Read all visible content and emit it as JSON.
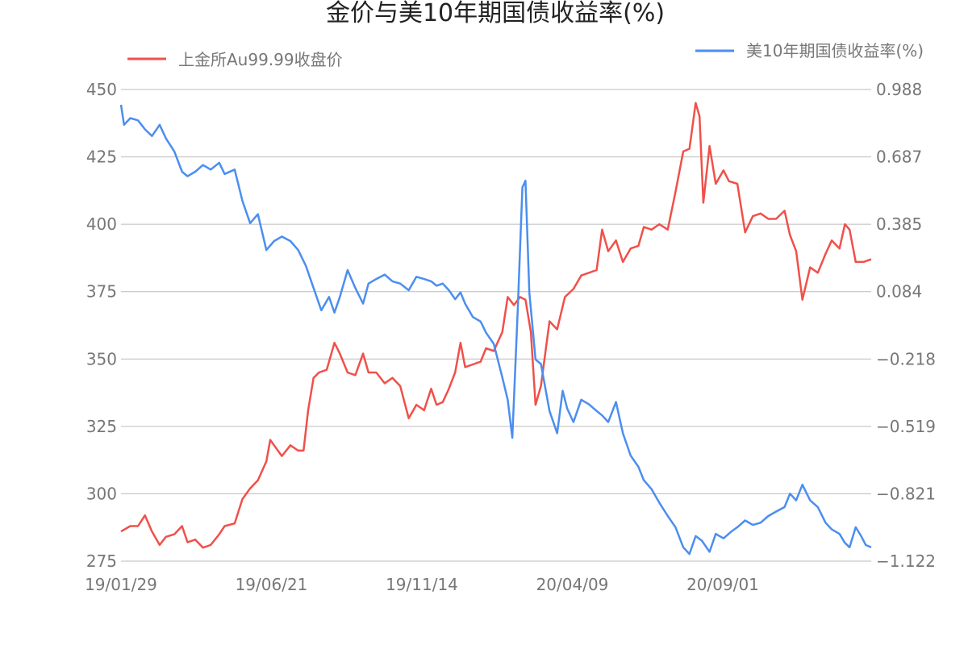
{
  "chart_data": {
    "type": "line",
    "title": "金价与美10年期国债收益率(%)",
    "x_ticks": [
      "19/01/29",
      "19/06/21",
      "19/11/14",
      "20/04/09",
      "20/09/01"
    ],
    "y_left": {
      "ticks": [
        "450",
        "425",
        "400",
        "375",
        "350",
        "325",
        "300",
        "275"
      ],
      "range": [
        275,
        450
      ]
    },
    "y_right": {
      "ticks": [
        "0.988",
        "0.687",
        "0.385",
        "0.084",
        "−0.218",
        "−0.519",
        "−0.821",
        "−1.122"
      ],
      "range": [
        -1.122,
        0.988
      ]
    },
    "grid": true,
    "series": [
      {
        "name": "上金所Au99.99收盘价",
        "axis": "left",
        "color": "#f0504a",
        "points": [
          [
            "2019-01-29",
            286
          ],
          [
            "2019-02-10",
            288
          ],
          [
            "2019-02-20",
            288
          ],
          [
            "2019-03-01",
            292
          ],
          [
            "2019-03-10",
            286
          ],
          [
            "2019-03-20",
            281
          ],
          [
            "2019-03-28",
            284
          ],
          [
            "2019-04-08",
            285
          ],
          [
            "2019-04-18",
            288
          ],
          [
            "2019-04-25",
            282
          ],
          [
            "2019-05-05",
            283
          ],
          [
            "2019-05-15",
            280
          ],
          [
            "2019-05-25",
            281
          ],
          [
            "2019-06-05",
            285
          ],
          [
            "2019-06-12",
            288
          ],
          [
            "2019-06-25",
            289
          ],
          [
            "2019-07-05",
            298
          ],
          [
            "2019-07-15",
            302
          ],
          [
            "2019-07-25",
            305
          ],
          [
            "2019-08-05",
            312
          ],
          [
            "2019-08-10",
            320
          ],
          [
            "2019-08-15",
            318
          ],
          [
            "2019-08-25",
            314
          ],
          [
            "2019-09-05",
            318
          ],
          [
            "2019-09-15",
            316
          ],
          [
            "2019-09-22",
            316
          ],
          [
            "2019-09-28",
            331
          ],
          [
            "2019-10-05",
            343
          ],
          [
            "2019-10-12",
            345
          ],
          [
            "2019-10-22",
            346
          ],
          [
            "2019-11-01",
            356
          ],
          [
            "2019-11-08",
            352
          ],
          [
            "2019-11-18",
            345
          ],
          [
            "2019-11-28",
            344
          ],
          [
            "2019-12-08",
            352
          ],
          [
            "2019-12-15",
            345
          ],
          [
            "2019-12-25",
            345
          ],
          [
            "2020-01-05",
            341
          ],
          [
            "2020-01-15",
            343
          ],
          [
            "2020-01-25",
            340
          ],
          [
            "2020-02-05",
            328
          ],
          [
            "2020-02-15",
            333
          ],
          [
            "2020-02-25",
            331
          ],
          [
            "2020-03-05",
            339
          ],
          [
            "2020-03-12",
            333
          ],
          [
            "2020-03-20",
            334
          ],
          [
            "2020-03-28",
            339
          ],
          [
            "2020-04-05",
            345
          ],
          [
            "2020-04-12",
            356
          ],
          [
            "2020-04-18",
            347
          ],
          [
            "2020-04-28",
            348
          ],
          [
            "2020-05-08",
            349
          ],
          [
            "2020-05-15",
            354
          ],
          [
            "2020-05-25",
            353
          ],
          [
            "2020-06-05",
            360
          ],
          [
            "2020-06-12",
            373
          ],
          [
            "2020-06-20",
            370
          ],
          [
            "2020-06-28",
            373
          ],
          [
            "2020-07-05",
            372
          ],
          [
            "2020-07-12",
            360
          ],
          [
            "2020-07-18",
            333
          ],
          [
            "2020-07-25",
            340
          ],
          [
            "2020-08-05",
            364
          ],
          [
            "2020-08-15",
            361
          ],
          [
            "2020-08-25",
            373
          ],
          [
            "2020-09-05",
            376
          ],
          [
            "2020-09-15",
            381
          ],
          [
            "2020-09-25",
            382
          ],
          [
            "2020-10-05",
            383
          ],
          [
            "2020-10-12",
            398
          ],
          [
            "2020-10-20",
            390
          ],
          [
            "2020-10-30",
            394
          ],
          [
            "2020-11-08",
            386
          ],
          [
            "2020-11-18",
            391
          ],
          [
            "2020-11-28",
            392
          ],
          [
            "2020-12-05",
            399
          ],
          [
            "2020-12-15",
            398
          ],
          [
            "2020-12-25",
            400
          ],
          [
            "2021-01-05",
            398
          ],
          [
            "2021-01-15",
            412
          ],
          [
            "2021-01-25",
            427
          ],
          [
            "2021-02-02",
            428
          ],
          [
            "2021-02-10",
            445
          ],
          [
            "2021-02-15",
            440
          ],
          [
            "2021-02-20",
            408
          ],
          [
            "2021-02-28",
            429
          ],
          [
            "2021-03-08",
            415
          ],
          [
            "2021-03-18",
            420
          ],
          [
            "2021-03-25",
            416
          ],
          [
            "2021-04-05",
            415
          ],
          [
            "2021-04-15",
            397
          ],
          [
            "2021-04-25",
            403
          ],
          [
            "2021-05-05",
            404
          ],
          [
            "2021-05-15",
            402
          ],
          [
            "2021-05-25",
            402
          ],
          [
            "2021-06-05",
            405
          ],
          [
            "2021-06-12",
            396
          ],
          [
            "2021-06-20",
            390
          ],
          [
            "2021-06-28",
            372
          ],
          [
            "2021-07-08",
            384
          ],
          [
            "2021-07-18",
            382
          ],
          [
            "2021-07-28",
            389
          ],
          [
            "2021-08-05",
            394
          ],
          [
            "2021-08-15",
            391
          ],
          [
            "2021-08-22",
            400
          ],
          [
            "2021-08-28",
            398
          ],
          [
            "2021-09-05",
            386
          ],
          [
            "2021-09-15",
            386
          ],
          [
            "2021-09-25",
            387
          ]
        ]
      },
      {
        "name": "美10年期国债收益率(%)",
        "axis": "right",
        "color": "#4b8ef0",
        "points": [
          [
            "2019-01-29",
            0.92
          ],
          [
            "2019-02-02",
            0.83
          ],
          [
            "2019-02-10",
            0.86
          ],
          [
            "2019-02-20",
            0.85
          ],
          [
            "2019-03-01",
            0.81
          ],
          [
            "2019-03-10",
            0.78
          ],
          [
            "2019-03-20",
            0.83
          ],
          [
            "2019-03-28",
            0.77
          ],
          [
            "2019-04-08",
            0.71
          ],
          [
            "2019-04-18",
            0.62
          ],
          [
            "2019-04-25",
            0.6
          ],
          [
            "2019-05-05",
            0.62
          ],
          [
            "2019-05-15",
            0.65
          ],
          [
            "2019-05-25",
            0.63
          ],
          [
            "2019-06-05",
            0.66
          ],
          [
            "2019-06-12",
            0.61
          ],
          [
            "2019-06-25",
            0.63
          ],
          [
            "2019-07-05",
            0.49
          ],
          [
            "2019-07-15",
            0.39
          ],
          [
            "2019-07-25",
            0.43
          ],
          [
            "2019-08-05",
            0.27
          ],
          [
            "2019-08-15",
            0.31
          ],
          [
            "2019-08-25",
            0.33
          ],
          [
            "2019-09-05",
            0.31
          ],
          [
            "2019-09-15",
            0.27
          ],
          [
            "2019-09-25",
            0.2
          ],
          [
            "2019-10-05",
            0.1
          ],
          [
            "2019-10-15",
            0.0
          ],
          [
            "2019-10-25",
            0.06
          ],
          [
            "2019-11-01",
            -0.01
          ],
          [
            "2019-11-08",
            0.06
          ],
          [
            "2019-11-18",
            0.18
          ],
          [
            "2019-11-28",
            0.1
          ],
          [
            "2019-12-08",
            0.03
          ],
          [
            "2019-12-15",
            0.12
          ],
          [
            "2019-12-25",
            0.14
          ],
          [
            "2020-01-05",
            0.16
          ],
          [
            "2020-01-15",
            0.13
          ],
          [
            "2020-01-25",
            0.12
          ],
          [
            "2020-02-05",
            0.09
          ],
          [
            "2020-02-15",
            0.15
          ],
          [
            "2020-02-25",
            0.14
          ],
          [
            "2020-03-05",
            0.13
          ],
          [
            "2020-03-12",
            0.11
          ],
          [
            "2020-03-20",
            0.12
          ],
          [
            "2020-03-28",
            0.09
          ],
          [
            "2020-04-05",
            0.05
          ],
          [
            "2020-04-12",
            0.08
          ],
          [
            "2020-04-18",
            0.03
          ],
          [
            "2020-04-28",
            -0.03
          ],
          [
            "2020-05-08",
            -0.05
          ],
          [
            "2020-05-15",
            -0.1
          ],
          [
            "2020-05-25",
            -0.15
          ],
          [
            "2020-06-05",
            -0.3
          ],
          [
            "2020-06-12",
            -0.4
          ],
          [
            "2020-06-18",
            -0.57
          ],
          [
            "2020-06-25",
            0.0
          ],
          [
            "2020-07-01",
            0.55
          ],
          [
            "2020-07-05",
            0.58
          ],
          [
            "2020-07-10",
            0.08
          ],
          [
            "2020-07-18",
            -0.22
          ],
          [
            "2020-07-25",
            -0.24
          ],
          [
            "2020-08-05",
            -0.45
          ],
          [
            "2020-08-15",
            -0.55
          ],
          [
            "2020-08-22",
            -0.36
          ],
          [
            "2020-08-28",
            -0.44
          ],
          [
            "2020-09-05",
            -0.5
          ],
          [
            "2020-09-15",
            -0.4
          ],
          [
            "2020-09-25",
            -0.42
          ],
          [
            "2020-10-05",
            -0.45
          ],
          [
            "2020-10-12",
            -0.47
          ],
          [
            "2020-10-20",
            -0.5
          ],
          [
            "2020-10-30",
            -0.41
          ],
          [
            "2020-11-08",
            -0.55
          ],
          [
            "2020-11-18",
            -0.65
          ],
          [
            "2020-11-28",
            -0.7
          ],
          [
            "2020-12-05",
            -0.76
          ],
          [
            "2020-12-15",
            -0.8
          ],
          [
            "2020-12-25",
            -0.86
          ],
          [
            "2021-01-05",
            -0.92
          ],
          [
            "2021-01-15",
            -0.97
          ],
          [
            "2021-01-25",
            -1.06
          ],
          [
            "2021-02-02",
            -1.09
          ],
          [
            "2021-02-10",
            -1.01
          ],
          [
            "2021-02-18",
            -1.03
          ],
          [
            "2021-02-28",
            -1.08
          ],
          [
            "2021-03-08",
            -1.0
          ],
          [
            "2021-03-18",
            -1.02
          ],
          [
            "2021-03-28",
            -0.99
          ],
          [
            "2021-04-05",
            -0.97
          ],
          [
            "2021-04-15",
            -0.94
          ],
          [
            "2021-04-25",
            -0.96
          ],
          [
            "2021-05-05",
            -0.95
          ],
          [
            "2021-05-15",
            -0.92
          ],
          [
            "2021-05-25",
            -0.9
          ],
          [
            "2021-06-05",
            -0.88
          ],
          [
            "2021-06-12",
            -0.82
          ],
          [
            "2021-06-20",
            -0.85
          ],
          [
            "2021-06-28",
            -0.78
          ],
          [
            "2021-07-08",
            -0.85
          ],
          [
            "2021-07-18",
            -0.88
          ],
          [
            "2021-07-28",
            -0.95
          ],
          [
            "2021-08-05",
            -0.98
          ],
          [
            "2021-08-15",
            -1.0
          ],
          [
            "2021-08-22",
            -1.04
          ],
          [
            "2021-08-28",
            -1.06
          ],
          [
            "2021-09-05",
            -0.97
          ],
          [
            "2021-09-12",
            -1.01
          ],
          [
            "2021-09-18",
            -1.05
          ],
          [
            "2021-09-25",
            -1.06
          ]
        ]
      }
    ]
  }
}
